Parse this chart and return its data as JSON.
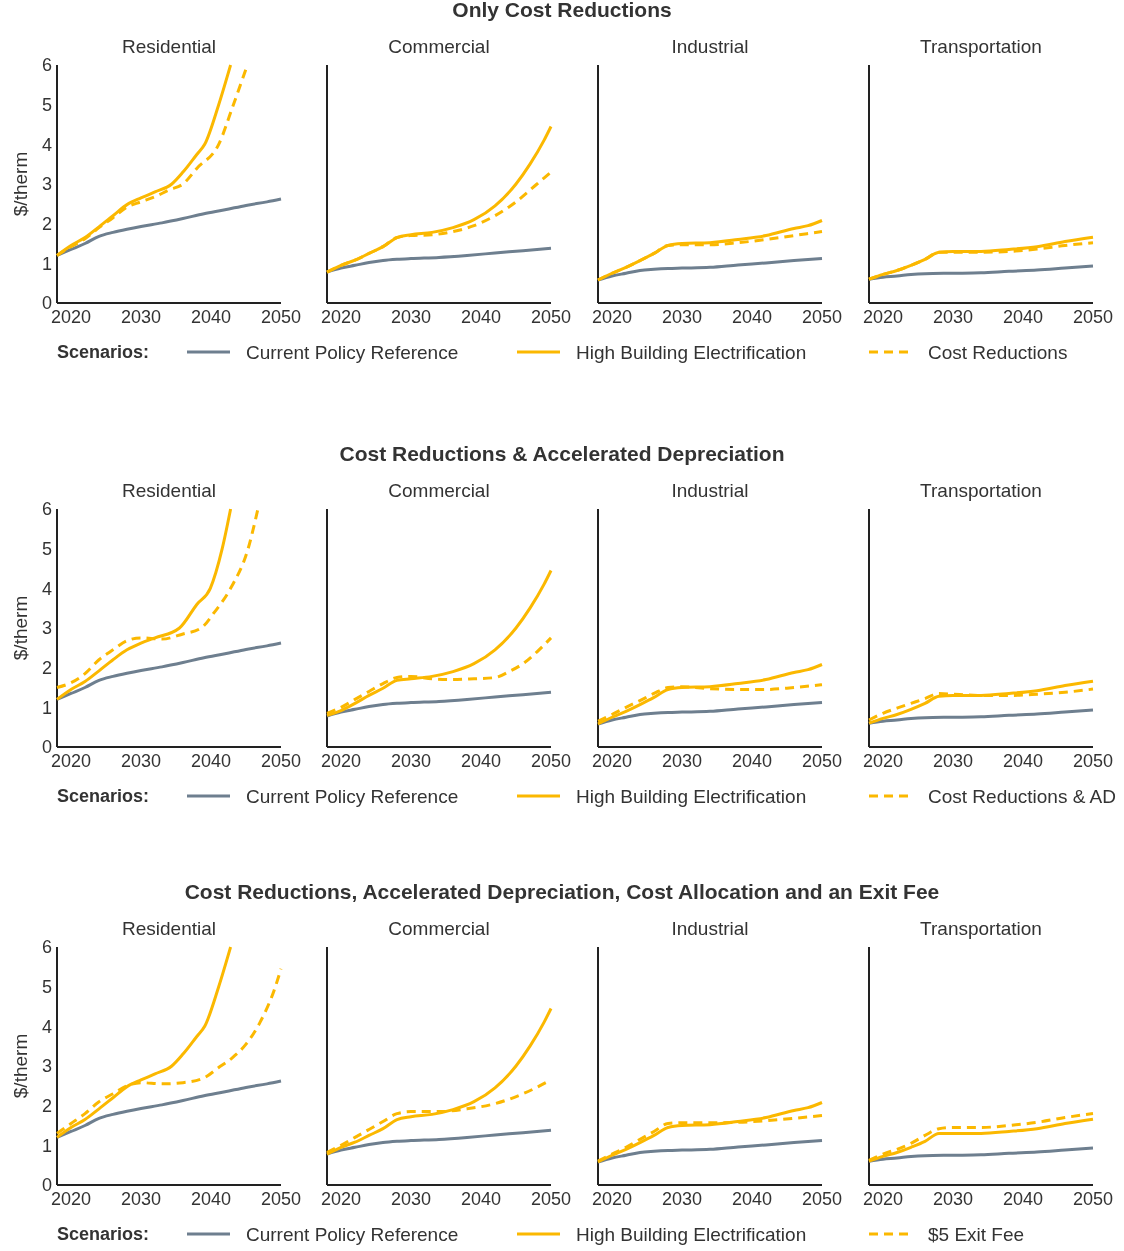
{
  "chart_data": [
    {
      "type": "line",
      "title": "Residential",
      "annotations": [
        "Only Cost Reductions"
      ],
      "ylabel": "$/therm",
      "legend": "bottom",
      "legend_title": "Scenarios:",
      "xlim": [
        2018,
        2050
      ],
      "xticks": [
        2020,
        2030,
        2040,
        2050
      ],
      "ylim": [
        0,
        6
      ],
      "yticks": [
        0,
        1,
        2,
        3,
        4,
        5,
        6
      ],
      "series": [
        {
          "name": "Current Policy Reference",
          "color": "#6e7f8f",
          "x": [
            2018,
            2020,
            2022,
            2024,
            2026,
            2028,
            2030,
            2033,
            2036,
            2039,
            2042,
            2045,
            2048,
            2050
          ],
          "values": [
            1.2,
            1.35,
            1.5,
            1.68,
            1.78,
            1.86,
            1.93,
            2.02,
            2.13,
            2.25,
            2.35,
            2.46,
            2.55,
            2.62
          ]
        },
        {
          "name": "High Building Electrification",
          "color": "#fbb800",
          "x": [
            2018,
            2020,
            2022,
            2024,
            2026,
            2028,
            2030,
            2032,
            2034.4,
            2036,
            2038,
            2039.1,
            2041.1,
            2042.8
          ],
          "values": [
            1.2,
            1.45,
            1.65,
            1.92,
            2.2,
            2.48,
            2.65,
            2.8,
            3.0,
            3.3,
            3.75,
            4.0,
            5.0,
            6.0
          ]
        },
        {
          "name": "Cost Reductions",
          "color": "#fbb800",
          "line_style": "dashed",
          "x": [
            2018,
            2020,
            2022,
            2024,
            2026,
            2028,
            2030,
            2032,
            2034,
            2036,
            2038,
            2041.1,
            2043.2,
            2045.2
          ],
          "values": [
            1.2,
            1.42,
            1.62,
            1.9,
            2.15,
            2.42,
            2.55,
            2.68,
            2.85,
            3.0,
            3.4,
            4.0,
            5.0,
            6.0
          ]
        }
      ]
    },
    {
      "type": "line",
      "title": "Commercial",
      "tick_labels": "x",
      "xlim": [
        2018,
        2050
      ],
      "xticks": [
        2020,
        2030,
        2040,
        2050
      ],
      "ylim": [
        0,
        6
      ],
      "series": [
        {
          "color": "#6e7f8f",
          "x": [
            2018,
            2020,
            2022,
            2024,
            2026,
            2028,
            2030,
            2034,
            2038,
            2042,
            2046,
            2050
          ],
          "values": [
            0.78,
            0.88,
            0.95,
            1.02,
            1.07,
            1.1,
            1.12,
            1.15,
            1.2,
            1.26,
            1.32,
            1.38
          ]
        },
        {
          "color": "#fbb800",
          "x": [
            2018,
            2020,
            2022,
            2024,
            2026,
            2028,
            2030,
            2033,
            2036,
            2039,
            2042,
            2045,
            2047,
            2049,
            2050
          ],
          "values": [
            0.78,
            0.95,
            1.08,
            1.25,
            1.42,
            1.65,
            1.72,
            1.78,
            1.9,
            2.1,
            2.45,
            3.0,
            3.5,
            4.1,
            4.45
          ]
        },
        {
          "color": "#fbb800",
          "line_style": "dashed",
          "x": [
            2018,
            2020,
            2022,
            2024,
            2026,
            2028,
            2030,
            2033,
            2036,
            2039,
            2042,
            2045,
            2048,
            2050
          ],
          "values": [
            0.78,
            0.95,
            1.08,
            1.25,
            1.42,
            1.65,
            1.7,
            1.72,
            1.8,
            1.95,
            2.2,
            2.55,
            3.0,
            3.3
          ]
        }
      ]
    },
    {
      "type": "line",
      "title": "Industrial",
      "tick_labels": "x",
      "xlim": [
        2018,
        2050
      ],
      "xticks": [
        2020,
        2030,
        2040,
        2050
      ],
      "ylim": [
        0,
        6
      ],
      "series": [
        {
          "color": "#6e7f8f",
          "x": [
            2018,
            2020,
            2022,
            2024,
            2026,
            2028,
            2030,
            2034,
            2038,
            2042,
            2046,
            2050
          ],
          "values": [
            0.58,
            0.68,
            0.75,
            0.82,
            0.85,
            0.87,
            0.88,
            0.9,
            0.96,
            1.01,
            1.07,
            1.12
          ]
        },
        {
          "color": "#fbb800",
          "x": [
            2018,
            2020,
            2022,
            2024,
            2026,
            2028,
            2030,
            2034,
            2038,
            2042,
            2046,
            2048,
            2050
          ],
          "values": [
            0.58,
            0.75,
            0.9,
            1.07,
            1.25,
            1.45,
            1.5,
            1.52,
            1.6,
            1.7,
            1.88,
            1.95,
            2.08
          ]
        },
        {
          "color": "#fbb800",
          "line_style": "dashed",
          "x": [
            2018,
            2020,
            2022,
            2024,
            2026,
            2028,
            2030,
            2034,
            2038,
            2042,
            2046,
            2050
          ],
          "values": [
            0.58,
            0.75,
            0.9,
            1.07,
            1.25,
            1.45,
            1.47,
            1.47,
            1.52,
            1.6,
            1.7,
            1.8
          ]
        }
      ]
    },
    {
      "type": "line",
      "title": "Transportation",
      "tick_labels": "x",
      "xlim": [
        2018,
        2050
      ],
      "xticks": [
        2020,
        2030,
        2040,
        2050
      ],
      "ylim": [
        0,
        6
      ],
      "series": [
        {
          "color": "#6e7f8f",
          "x": [
            2018,
            2020,
            2022,
            2024,
            2026,
            2030,
            2034,
            2038,
            2042,
            2046,
            2050
          ],
          "values": [
            0.6,
            0.65,
            0.68,
            0.72,
            0.74,
            0.75,
            0.76,
            0.8,
            0.83,
            0.88,
            0.93
          ]
        },
        {
          "color": "#fbb800",
          "x": [
            2018,
            2020,
            2022,
            2024,
            2026,
            2028,
            2030,
            2034,
            2038,
            2042,
            2046,
            2050
          ],
          "values": [
            0.6,
            0.72,
            0.82,
            0.95,
            1.1,
            1.28,
            1.3,
            1.3,
            1.35,
            1.42,
            1.55,
            1.66
          ]
        },
        {
          "color": "#fbb800",
          "line_style": "dashed",
          "x": [
            2018,
            2020,
            2022,
            2024,
            2026,
            2028,
            2030,
            2034,
            2038,
            2042,
            2046,
            2050
          ],
          "values": [
            0.6,
            0.72,
            0.82,
            0.95,
            1.1,
            1.28,
            1.28,
            1.28,
            1.3,
            1.36,
            1.45,
            1.52
          ]
        }
      ]
    },
    {
      "type": "line",
      "title": "Residential",
      "annotations": [
        "Cost Reductions & Accelerated Depreciation"
      ],
      "ylabel": "$/therm",
      "legend": "bottom",
      "legend_title": "Scenarios:",
      "xlim": [
        2018,
        2050
      ],
      "xticks": [
        2020,
        2030,
        2040,
        2050
      ],
      "ylim": [
        0,
        6
      ],
      "yticks": [
        0,
        1,
        2,
        3,
        4,
        5,
        6
      ],
      "series": [
        {
          "name": "Current Policy Reference",
          "color": "#6e7f8f",
          "x": [
            2018,
            2020,
            2022,
            2024,
            2026,
            2028,
            2030,
            2033,
            2036,
            2039,
            2042,
            2045,
            2048,
            2050
          ],
          "values": [
            1.2,
            1.35,
            1.5,
            1.68,
            1.78,
            1.86,
            1.93,
            2.02,
            2.13,
            2.25,
            2.35,
            2.46,
            2.55,
            2.62
          ]
        },
        {
          "name": "High Building Electrification",
          "color": "#fbb800",
          "x": [
            2018,
            2020,
            2022,
            2024,
            2026,
            2028,
            2030,
            2032,
            2035.5,
            2038,
            2039.9,
            2041.6,
            2042.8
          ],
          "values": [
            1.2,
            1.45,
            1.65,
            1.92,
            2.2,
            2.45,
            2.62,
            2.75,
            3.0,
            3.6,
            4.0,
            5.0,
            6.0
          ]
        },
        {
          "name": "Cost Reductions & AD",
          "color": "#fbb800",
          "line_style": "dashed",
          "x": [
            2018,
            2020,
            2022,
            2024,
            2026,
            2028,
            2030,
            2033,
            2036,
            2038.6,
            2040.5,
            2042.8,
            2045.3,
            2046.7
          ],
          "values": [
            1.5,
            1.62,
            1.85,
            2.2,
            2.45,
            2.68,
            2.75,
            2.72,
            2.85,
            3.0,
            3.4,
            4.0,
            5.0,
            6.0
          ]
        }
      ]
    },
    {
      "type": "line",
      "title": "Commercial",
      "tick_labels": "x",
      "xlim": [
        2018,
        2050
      ],
      "xticks": [
        2020,
        2030,
        2040,
        2050
      ],
      "ylim": [
        0,
        6
      ],
      "series": [
        {
          "color": "#6e7f8f",
          "x": [
            2018,
            2020,
            2022,
            2024,
            2026,
            2028,
            2030,
            2034,
            2038,
            2042,
            2046,
            2050
          ],
          "values": [
            0.78,
            0.88,
            0.95,
            1.02,
            1.07,
            1.1,
            1.12,
            1.15,
            1.2,
            1.26,
            1.32,
            1.38
          ]
        },
        {
          "color": "#fbb800",
          "x": [
            2018,
            2020,
            2022,
            2024,
            2026,
            2028,
            2030,
            2033,
            2036,
            2039,
            2042,
            2045,
            2047,
            2049,
            2050
          ],
          "values": [
            0.8,
            0.92,
            1.1,
            1.3,
            1.48,
            1.68,
            1.72,
            1.78,
            1.9,
            2.1,
            2.45,
            3.0,
            3.5,
            4.1,
            4.45
          ]
        },
        {
          "color": "#fbb800",
          "line_style": "dashed",
          "x": [
            2018,
            2020,
            2022,
            2024,
            2026,
            2028,
            2030,
            2033,
            2036,
            2039,
            2042,
            2044,
            2046,
            2048,
            2050
          ],
          "values": [
            0.85,
            1.0,
            1.2,
            1.4,
            1.6,
            1.75,
            1.78,
            1.72,
            1.7,
            1.72,
            1.75,
            1.9,
            2.1,
            2.4,
            2.75
          ]
        }
      ]
    },
    {
      "type": "line",
      "title": "Industrial",
      "tick_labels": "x",
      "xlim": [
        2018,
        2050
      ],
      "xticks": [
        2020,
        2030,
        2040,
        2050
      ],
      "ylim": [
        0,
        6
      ],
      "series": [
        {
          "color": "#6e7f8f",
          "x": [
            2018,
            2020,
            2022,
            2024,
            2026,
            2028,
            2030,
            2034,
            2038,
            2042,
            2046,
            2050
          ],
          "values": [
            0.58,
            0.68,
            0.75,
            0.82,
            0.85,
            0.87,
            0.88,
            0.9,
            0.96,
            1.01,
            1.07,
            1.12
          ]
        },
        {
          "color": "#fbb800",
          "x": [
            2018,
            2020,
            2022,
            2024,
            2026,
            2028,
            2030,
            2034,
            2038,
            2042,
            2046,
            2048,
            2050
          ],
          "values": [
            0.58,
            0.75,
            0.9,
            1.07,
            1.25,
            1.45,
            1.5,
            1.52,
            1.6,
            1.7,
            1.88,
            1.95,
            2.08
          ]
        },
        {
          "color": "#fbb800",
          "line_style": "dashed",
          "x": [
            2018,
            2020,
            2022,
            2024,
            2026,
            2028,
            2030,
            2034,
            2038,
            2042,
            2046,
            2050
          ],
          "values": [
            0.65,
            0.82,
            1.0,
            1.17,
            1.35,
            1.5,
            1.52,
            1.47,
            1.45,
            1.45,
            1.5,
            1.57
          ]
        }
      ]
    },
    {
      "type": "line",
      "title": "Transportation",
      "tick_labels": "x",
      "xlim": [
        2018,
        2050
      ],
      "xticks": [
        2020,
        2030,
        2040,
        2050
      ],
      "ylim": [
        0,
        6
      ],
      "series": [
        {
          "color": "#6e7f8f",
          "x": [
            2018,
            2020,
            2022,
            2024,
            2026,
            2030,
            2034,
            2038,
            2042,
            2046,
            2050
          ],
          "values": [
            0.6,
            0.65,
            0.68,
            0.72,
            0.74,
            0.75,
            0.76,
            0.8,
            0.83,
            0.88,
            0.93
          ]
        },
        {
          "color": "#fbb800",
          "x": [
            2018,
            2020,
            2022,
            2024,
            2026,
            2028,
            2030,
            2034,
            2038,
            2042,
            2046,
            2050
          ],
          "values": [
            0.6,
            0.72,
            0.82,
            0.95,
            1.1,
            1.28,
            1.3,
            1.3,
            1.35,
            1.42,
            1.55,
            1.66
          ]
        },
        {
          "color": "#fbb800",
          "line_style": "dashed",
          "x": [
            2018,
            2020,
            2022,
            2024,
            2026,
            2028,
            2030,
            2034,
            2038,
            2042,
            2046,
            2050
          ],
          "values": [
            0.68,
            0.85,
            0.98,
            1.1,
            1.22,
            1.35,
            1.33,
            1.3,
            1.3,
            1.33,
            1.38,
            1.46
          ]
        }
      ]
    },
    {
      "type": "line",
      "title": "Residential",
      "annotations": [
        "Cost Reductions, Accelerated Depreciation, Cost Allocation and an Exit Fee"
      ],
      "ylabel": "$/therm",
      "legend": "bottom",
      "legend_title": "Scenarios:",
      "xlim": [
        2018,
        2050
      ],
      "xticks": [
        2020,
        2030,
        2040,
        2050
      ],
      "ylim": [
        0,
        6
      ],
      "yticks": [
        0,
        1,
        2,
        3,
        4,
        5,
        6
      ],
      "series": [
        {
          "name": "Current Policy Reference",
          "color": "#6e7f8f",
          "x": [
            2018,
            2020,
            2022,
            2024,
            2026,
            2028,
            2030,
            2033,
            2036,
            2039,
            2042,
            2045,
            2048,
            2050
          ],
          "values": [
            1.2,
            1.35,
            1.5,
            1.68,
            1.78,
            1.86,
            1.93,
            2.02,
            2.13,
            2.25,
            2.35,
            2.46,
            2.55,
            2.62
          ]
        },
        {
          "name": "High Building Electrification",
          "color": "#fbb800",
          "x": [
            2018,
            2020,
            2022,
            2024,
            2026,
            2028,
            2030,
            2032,
            2034.4,
            2036,
            2038,
            2039.1,
            2041.1,
            2042.8
          ],
          "values": [
            1.2,
            1.45,
            1.65,
            1.92,
            2.2,
            2.48,
            2.65,
            2.8,
            3.0,
            3.3,
            3.75,
            4.0,
            5.0,
            6.0
          ]
        },
        {
          "name": "$5 Exit Fee",
          "color": "#fbb800",
          "line_style": "dashed",
          "x": [
            2018,
            2020,
            2022,
            2024,
            2026,
            2028,
            2030,
            2033,
            2036,
            2039,
            2041,
            2043,
            2045,
            2047,
            2049,
            2050
          ],
          "values": [
            1.3,
            1.55,
            1.8,
            2.1,
            2.3,
            2.5,
            2.58,
            2.55,
            2.58,
            2.7,
            2.95,
            3.2,
            3.55,
            4.1,
            4.9,
            5.45
          ]
        }
      ]
    },
    {
      "type": "line",
      "title": "Commercial",
      "tick_labels": "x",
      "xlim": [
        2018,
        2050
      ],
      "xticks": [
        2020,
        2030,
        2040,
        2050
      ],
      "ylim": [
        0,
        6
      ],
      "series": [
        {
          "color": "#6e7f8f",
          "x": [
            2018,
            2020,
            2022,
            2024,
            2026,
            2028,
            2030,
            2034,
            2038,
            2042,
            2046,
            2050
          ],
          "values": [
            0.78,
            0.88,
            0.95,
            1.02,
            1.07,
            1.1,
            1.12,
            1.15,
            1.2,
            1.26,
            1.32,
            1.38
          ]
        },
        {
          "color": "#fbb800",
          "x": [
            2018,
            2020,
            2022,
            2024,
            2026,
            2028,
            2030,
            2033,
            2036,
            2039,
            2042,
            2045,
            2047,
            2049,
            2050
          ],
          "values": [
            0.78,
            0.95,
            1.08,
            1.25,
            1.42,
            1.65,
            1.72,
            1.78,
            1.9,
            2.1,
            2.45,
            3.0,
            3.5,
            4.1,
            4.45
          ]
        },
        {
          "color": "#fbb800",
          "line_style": "dashed",
          "x": [
            2018,
            2020,
            2022,
            2024,
            2026,
            2028,
            2030,
            2034,
            2038,
            2042,
            2046,
            2050
          ],
          "values": [
            0.82,
            1.0,
            1.2,
            1.4,
            1.6,
            1.8,
            1.85,
            1.85,
            1.92,
            2.05,
            2.3,
            2.65
          ]
        }
      ]
    },
    {
      "type": "line",
      "title": "Industrial",
      "tick_labels": "x",
      "xlim": [
        2018,
        2050
      ],
      "xticks": [
        2020,
        2030,
        2040,
        2050
      ],
      "ylim": [
        0,
        6
      ],
      "series": [
        {
          "color": "#6e7f8f",
          "x": [
            2018,
            2020,
            2022,
            2024,
            2026,
            2028,
            2030,
            2034,
            2038,
            2042,
            2046,
            2050
          ],
          "values": [
            0.58,
            0.68,
            0.75,
            0.82,
            0.85,
            0.87,
            0.88,
            0.9,
            0.96,
            1.01,
            1.07,
            1.12
          ]
        },
        {
          "color": "#fbb800",
          "x": [
            2018,
            2020,
            2022,
            2024,
            2026,
            2028,
            2030,
            2034,
            2038,
            2042,
            2046,
            2048,
            2050
          ],
          "values": [
            0.58,
            0.75,
            0.9,
            1.07,
            1.25,
            1.45,
            1.5,
            1.52,
            1.6,
            1.7,
            1.88,
            1.95,
            2.08
          ]
        },
        {
          "color": "#fbb800",
          "line_style": "dashed",
          "x": [
            2018,
            2020,
            2022,
            2024,
            2026,
            2028,
            2030,
            2034,
            2038,
            2042,
            2046,
            2050
          ],
          "values": [
            0.6,
            0.78,
            0.95,
            1.15,
            1.35,
            1.55,
            1.57,
            1.57,
            1.58,
            1.62,
            1.68,
            1.75
          ]
        }
      ]
    },
    {
      "type": "line",
      "title": "Transportation",
      "tick_labels": "x",
      "xlim": [
        2018,
        2050
      ],
      "xticks": [
        2020,
        2030,
        2040,
        2050
      ],
      "ylim": [
        0,
        6
      ],
      "series": [
        {
          "color": "#6e7f8f",
          "x": [
            2018,
            2020,
            2022,
            2024,
            2026,
            2030,
            2034,
            2038,
            2042,
            2046,
            2050
          ],
          "values": [
            0.6,
            0.65,
            0.68,
            0.72,
            0.74,
            0.75,
            0.76,
            0.8,
            0.83,
            0.88,
            0.93
          ]
        },
        {
          "color": "#fbb800",
          "x": [
            2018,
            2020,
            2022,
            2024,
            2026,
            2028,
            2030,
            2034,
            2038,
            2042,
            2046,
            2050
          ],
          "values": [
            0.6,
            0.72,
            0.82,
            0.95,
            1.1,
            1.3,
            1.3,
            1.3,
            1.35,
            1.42,
            1.55,
            1.66
          ]
        },
        {
          "color": "#fbb800",
          "line_style": "dashed",
          "x": [
            2018,
            2020,
            2022,
            2024,
            2026,
            2028,
            2030,
            2034,
            2038,
            2042,
            2046,
            2050
          ],
          "values": [
            0.62,
            0.78,
            0.9,
            1.05,
            1.25,
            1.42,
            1.45,
            1.45,
            1.5,
            1.58,
            1.7,
            1.8
          ]
        }
      ]
    }
  ]
}
